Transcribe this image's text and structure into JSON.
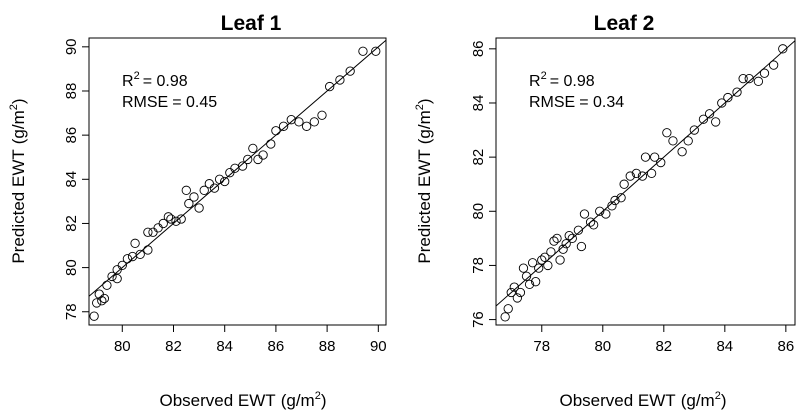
{
  "chart_data": [
    {
      "type": "scatter",
      "title": "Leaf 1",
      "xlabel": "Observed EWT",
      "ylabel": "Predicted EWT",
      "unit_base": "g/m",
      "unit_exp": "2",
      "xlim": [
        78.7,
        90.3
      ],
      "ylim": [
        77.4,
        90.4
      ],
      "xticks": [
        80,
        82,
        84,
        86,
        88,
        90
      ],
      "yticks": [
        78,
        80,
        82,
        84,
        86,
        88,
        90
      ],
      "r2_label": "R",
      "r2_sup": "2",
      "r2_value": "= 0.98",
      "rmse_label": "RMSE",
      "rmse_value": "= 0.45",
      "reference_line": [
        [
          78.7,
          78.7
        ],
        [
          90.3,
          90.3
        ]
      ],
      "points": [
        [
          78.9,
          77.8
        ],
        [
          79.0,
          78.4
        ],
        [
          79.1,
          78.8
        ],
        [
          79.2,
          78.5
        ],
        [
          79.3,
          78.6
        ],
        [
          79.4,
          79.2
        ],
        [
          79.6,
          79.6
        ],
        [
          79.8,
          79.9
        ],
        [
          79.8,
          79.5
        ],
        [
          80.0,
          80.1
        ],
        [
          80.2,
          80.4
        ],
        [
          80.4,
          80.5
        ],
        [
          80.5,
          81.1
        ],
        [
          80.7,
          80.6
        ],
        [
          81.0,
          80.8
        ],
        [
          81.0,
          81.6
        ],
        [
          81.2,
          81.6
        ],
        [
          81.4,
          81.8
        ],
        [
          81.6,
          82.0
        ],
        [
          81.8,
          82.3
        ],
        [
          81.9,
          82.2
        ],
        [
          82.1,
          82.1
        ],
        [
          82.3,
          82.2
        ],
        [
          82.5,
          83.5
        ],
        [
          82.6,
          82.9
        ],
        [
          82.8,
          83.2
        ],
        [
          83.0,
          82.7
        ],
        [
          83.2,
          83.5
        ],
        [
          83.4,
          83.8
        ],
        [
          83.6,
          83.6
        ],
        [
          83.8,
          84.0
        ],
        [
          84.0,
          83.9
        ],
        [
          84.2,
          84.3
        ],
        [
          84.4,
          84.5
        ],
        [
          84.7,
          84.6
        ],
        [
          84.9,
          84.9
        ],
        [
          85.1,
          85.4
        ],
        [
          85.3,
          84.9
        ],
        [
          85.5,
          85.1
        ],
        [
          85.8,
          85.6
        ],
        [
          86.0,
          86.2
        ],
        [
          86.3,
          86.4
        ],
        [
          86.6,
          86.7
        ],
        [
          86.9,
          86.6
        ],
        [
          87.2,
          86.4
        ],
        [
          87.5,
          86.6
        ],
        [
          87.8,
          86.9
        ],
        [
          88.1,
          88.2
        ],
        [
          88.5,
          88.5
        ],
        [
          88.9,
          88.9
        ],
        [
          89.4,
          89.8
        ],
        [
          89.9,
          89.8
        ]
      ]
    },
    {
      "type": "scatter",
      "title": "Leaf 2",
      "xlabel": "Observed EWT",
      "ylabel": "Predicted EWT",
      "unit_base": "g/m",
      "unit_exp": "2",
      "xlim": [
        76.5,
        86.3
      ],
      "ylim": [
        75.8,
        86.4
      ],
      "xticks": [
        78,
        80,
        82,
        84,
        86
      ],
      "yticks": [
        76,
        78,
        80,
        82,
        84,
        86
      ],
      "r2_label": "R",
      "r2_sup": "2",
      "r2_value": "= 0.98",
      "rmse_label": "RMSE",
      "rmse_value": "= 0.34",
      "reference_line": [
        [
          76.5,
          76.5
        ],
        [
          86.3,
          86.3
        ]
      ],
      "points": [
        [
          76.8,
          76.1
        ],
        [
          76.9,
          76.4
        ],
        [
          77.0,
          77.0
        ],
        [
          77.1,
          77.2
        ],
        [
          77.2,
          76.8
        ],
        [
          77.3,
          77.0
        ],
        [
          77.4,
          77.9
        ],
        [
          77.5,
          77.6
        ],
        [
          77.6,
          77.3
        ],
        [
          77.7,
          78.1
        ],
        [
          77.8,
          77.4
        ],
        [
          77.9,
          77.9
        ],
        [
          78.0,
          78.2
        ],
        [
          78.1,
          78.3
        ],
        [
          78.2,
          78.0
        ],
        [
          78.3,
          78.5
        ],
        [
          78.4,
          78.9
        ],
        [
          78.5,
          79.0
        ],
        [
          78.6,
          78.2
        ],
        [
          78.7,
          78.6
        ],
        [
          78.8,
          78.8
        ],
        [
          78.9,
          79.1
        ],
        [
          79.0,
          79.0
        ],
        [
          79.2,
          79.3
        ],
        [
          79.3,
          78.7
        ],
        [
          79.4,
          79.9
        ],
        [
          79.6,
          79.6
        ],
        [
          79.7,
          79.5
        ],
        [
          79.9,
          80.0
        ],
        [
          80.1,
          79.9
        ],
        [
          80.3,
          80.2
        ],
        [
          80.4,
          80.4
        ],
        [
          80.6,
          80.5
        ],
        [
          80.7,
          81.0
        ],
        [
          80.9,
          81.3
        ],
        [
          81.1,
          81.4
        ],
        [
          81.3,
          81.3
        ],
        [
          81.4,
          82.0
        ],
        [
          81.6,
          81.4
        ],
        [
          81.7,
          82.0
        ],
        [
          81.9,
          81.8
        ],
        [
          82.1,
          82.9
        ],
        [
          82.3,
          82.6
        ],
        [
          82.6,
          82.2
        ],
        [
          82.8,
          82.6
        ],
        [
          83.0,
          83.0
        ],
        [
          83.3,
          83.4
        ],
        [
          83.5,
          83.6
        ],
        [
          83.7,
          83.3
        ],
        [
          83.9,
          84.0
        ],
        [
          84.1,
          84.2
        ],
        [
          84.4,
          84.4
        ],
        [
          84.6,
          84.9
        ],
        [
          84.8,
          84.9
        ],
        [
          85.1,
          84.8
        ],
        [
          85.3,
          85.1
        ],
        [
          85.6,
          85.4
        ],
        [
          85.9,
          86.0
        ]
      ]
    }
  ]
}
